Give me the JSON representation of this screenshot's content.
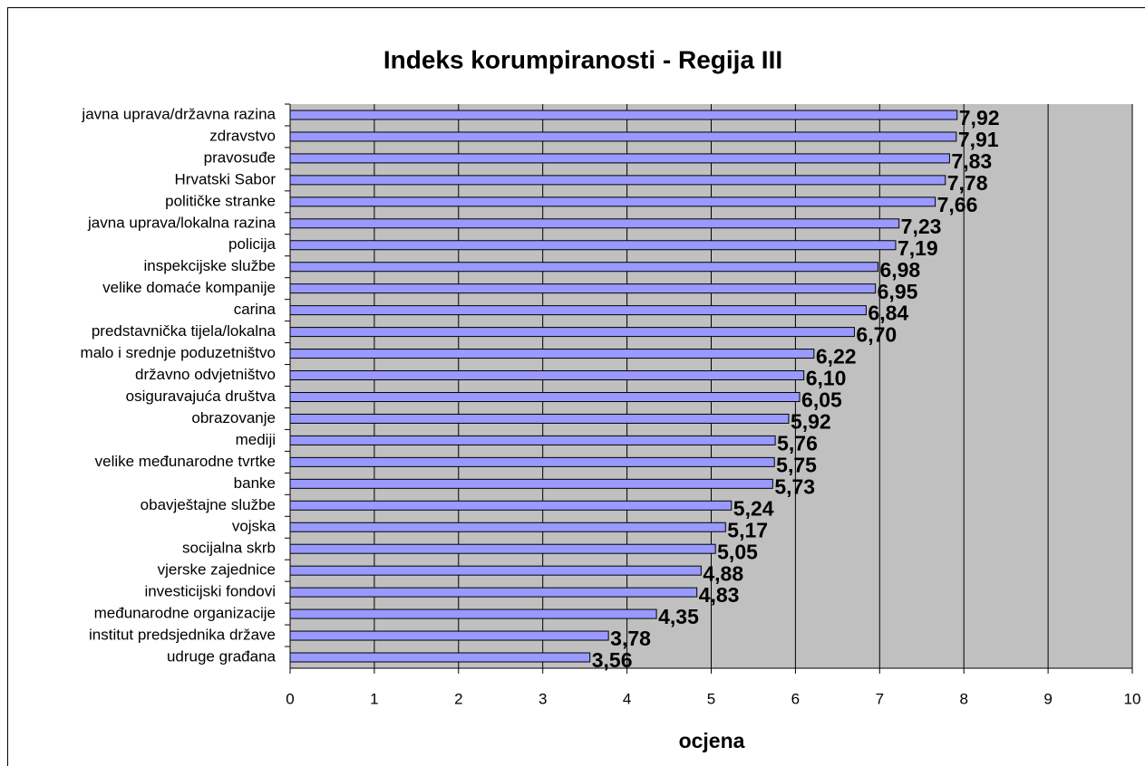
{
  "chart_data": {
    "type": "bar",
    "orientation": "horizontal",
    "title": "Indeks korumpiranosti - Regija III",
    "x_label": "ocjena",
    "categories": [
      "javna uprava/državna razina",
      "zdravstvo",
      "pravosuđe",
      "Hrvatski Sabor",
      "političke stranke",
      "javna uprava/lokalna razina",
      "policija",
      "inspekcijske službe",
      "velike domaće kompanije",
      "carina",
      "predstavnička tijela/lokalna",
      "malo i srednje poduzetništvo",
      "državno odvjetništvo",
      "osiguravajuća društva",
      "obrazovanje",
      "mediji",
      "velike međunarodne tvrtke",
      "banke",
      "obavještajne službe",
      "vojska",
      "socijalna skrb",
      "vjerske zajednice",
      "investicijski fondovi",
      "međunarodne organizacije",
      "institut predsjednika države",
      "udruge građana"
    ],
    "values": [
      7.92,
      7.91,
      7.83,
      7.78,
      7.66,
      7.23,
      7.19,
      6.98,
      6.95,
      6.84,
      6.7,
      6.22,
      6.1,
      6.05,
      5.92,
      5.76,
      5.75,
      5.73,
      5.24,
      5.17,
      5.05,
      4.88,
      4.83,
      4.35,
      3.78,
      3.56
    ],
    "value_labels": [
      "7,92",
      "7,91",
      "7,83",
      "7,78",
      "7,66",
      "7,23",
      "7,19",
      "6,98",
      "6,95",
      "6,84",
      "6,70",
      "6,22",
      "6,10",
      "6,05",
      "5,92",
      "5,76",
      "5,75",
      "5,73",
      "5,24",
      "5,17",
      "5,05",
      "4,88",
      "4,83",
      "4,35",
      "3,78",
      "3,56"
    ],
    "color": "#9999ff",
    "plot_background": "#c0c0c0",
    "xlim": [
      0,
      10
    ],
    "xticks": [
      0,
      1,
      2,
      3,
      4,
      5,
      6,
      7,
      8,
      9,
      10
    ],
    "grid": true
  }
}
